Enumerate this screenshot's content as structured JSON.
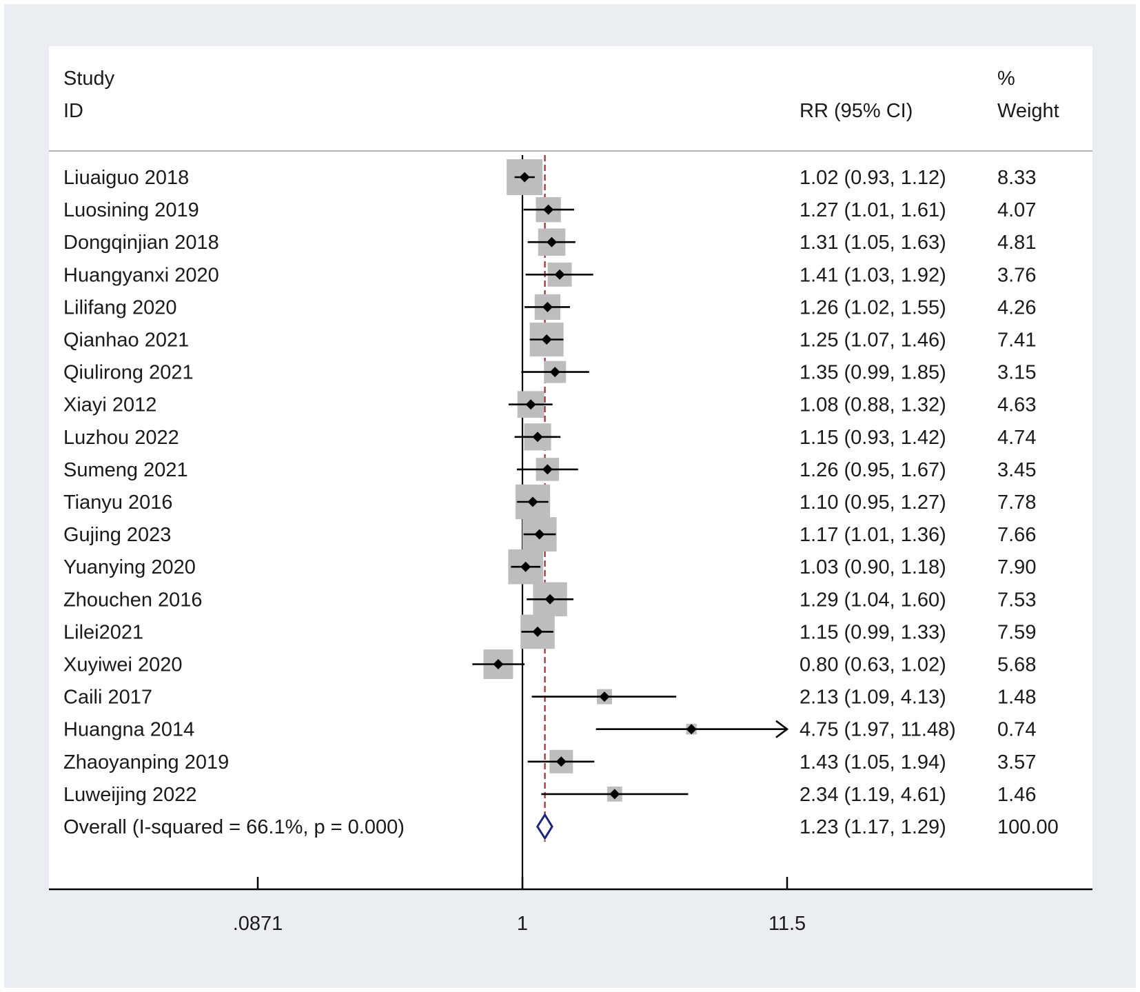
{
  "chart_data": {
    "type": "forest",
    "x_scale": "log",
    "headers": {
      "study_line1": "Study",
      "study_line2": "ID",
      "effect": "RR (95% CI)",
      "weight_line1": "%",
      "weight_line2": "Weight"
    },
    "studies": [
      {
        "label": "Liuaiguo 2018",
        "rr": 1.02,
        "lower": 0.93,
        "upper": 1.12,
        "weight": 8.33,
        "rr_text": "1.02 (0.93, 1.12)",
        "weight_text": "8.33"
      },
      {
        "label": "Luosining 2019",
        "rr": 1.27,
        "lower": 1.01,
        "upper": 1.61,
        "weight": 4.07,
        "rr_text": "1.27 (1.01, 1.61)",
        "weight_text": "4.07"
      },
      {
        "label": "Dongqinjian 2018",
        "rr": 1.31,
        "lower": 1.05,
        "upper": 1.63,
        "weight": 4.81,
        "rr_text": "1.31 (1.05, 1.63)",
        "weight_text": "4.81"
      },
      {
        "label": "Huangyanxi 2020",
        "rr": 1.41,
        "lower": 1.03,
        "upper": 1.92,
        "weight": 3.76,
        "rr_text": "1.41 (1.03, 1.92)",
        "weight_text": "3.76"
      },
      {
        "label": "Lilifang 2020",
        "rr": 1.26,
        "lower": 1.02,
        "upper": 1.55,
        "weight": 4.26,
        "rr_text": "1.26 (1.02, 1.55)",
        "weight_text": "4.26"
      },
      {
        "label": "Qianhao 2021",
        "rr": 1.25,
        "lower": 1.07,
        "upper": 1.46,
        "weight": 7.41,
        "rr_text": "1.25 (1.07, 1.46)",
        "weight_text": "7.41"
      },
      {
        "label": "Qiulirong 2021",
        "rr": 1.35,
        "lower": 0.99,
        "upper": 1.85,
        "weight": 3.15,
        "rr_text": "1.35 (0.99, 1.85)",
        "weight_text": "3.15"
      },
      {
        "label": "Xiayi 2012",
        "rr": 1.08,
        "lower": 0.88,
        "upper": 1.32,
        "weight": 4.63,
        "rr_text": "1.08 (0.88, 1.32)",
        "weight_text": "4.63"
      },
      {
        "label": "Luzhou 2022",
        "rr": 1.15,
        "lower": 0.93,
        "upper": 1.42,
        "weight": 4.74,
        "rr_text": "1.15 (0.93, 1.42)",
        "weight_text": "4.74"
      },
      {
        "label": "Sumeng 2021",
        "rr": 1.26,
        "lower": 0.95,
        "upper": 1.67,
        "weight": 3.45,
        "rr_text": "1.26 (0.95, 1.67)",
        "weight_text": "3.45"
      },
      {
        "label": "Tianyu 2016",
        "rr": 1.1,
        "lower": 0.95,
        "upper": 1.27,
        "weight": 7.78,
        "rr_text": "1.10 (0.95, 1.27)",
        "weight_text": "7.78"
      },
      {
        "label": "Gujing 2023",
        "rr": 1.17,
        "lower": 1.01,
        "upper": 1.36,
        "weight": 7.66,
        "rr_text": "1.17 (1.01, 1.36)",
        "weight_text": "7.66"
      },
      {
        "label": "Yuanying 2020",
        "rr": 1.03,
        "lower": 0.9,
        "upper": 1.18,
        "weight": 7.9,
        "rr_text": "1.03 (0.90, 1.18)",
        "weight_text": "7.90"
      },
      {
        "label": "Zhouchen 2016",
        "rr": 1.29,
        "lower": 1.04,
        "upper": 1.6,
        "weight": 7.53,
        "rr_text": "1.29 (1.04, 1.60)",
        "weight_text": "7.53"
      },
      {
        "label": "Lilei2021",
        "rr": 1.15,
        "lower": 0.99,
        "upper": 1.33,
        "weight": 7.59,
        "rr_text": "1.15 (0.99, 1.33)",
        "weight_text": "7.59"
      },
      {
        "label": "Xuyiwei 2020",
        "rr": 0.8,
        "lower": 0.63,
        "upper": 1.02,
        "weight": 5.68,
        "rr_text": "0.80 (0.63, 1.02)",
        "weight_text": "5.68"
      },
      {
        "label": "Caili 2017",
        "rr": 2.13,
        "lower": 1.09,
        "upper": 4.13,
        "weight": 1.48,
        "rr_text": "2.13 (1.09, 4.13)",
        "weight_text": "1.48"
      },
      {
        "label": "Huangna 2014",
        "rr": 4.75,
        "lower": 1.97,
        "upper": 11.48,
        "weight": 0.74,
        "rr_text": "4.75 (1.97, 11.48)",
        "weight_text": "0.74"
      },
      {
        "label": "Zhaoyanping 2019",
        "rr": 1.43,
        "lower": 1.05,
        "upper": 1.94,
        "weight": 3.57,
        "rr_text": "1.43 (1.05, 1.94)",
        "weight_text": "3.57"
      },
      {
        "label": "Luweijing 2022",
        "rr": 2.34,
        "lower": 1.19,
        "upper": 4.61,
        "weight": 1.46,
        "rr_text": "2.34 (1.19, 4.61)",
        "weight_text": "1.46"
      }
    ],
    "overall": {
      "label": "Overall  (I-squared = 66.1%, p = 0.000)",
      "rr": 1.23,
      "lower": 1.17,
      "upper": 1.29,
      "weight": 100.0,
      "rr_text": "1.23 (1.17, 1.29)",
      "weight_text": "100.00"
    },
    "null_line": 1,
    "pooled_line": 1.23,
    "xlim": [
      0.0871,
      11.48
    ],
    "ticks": [
      {
        "value": 0.0871,
        "label": ".0871"
      },
      {
        "value": 1,
        "label": "1"
      },
      {
        "value": 11.48,
        "label": "11.5"
      }
    ],
    "colors": {
      "marker_box": "#bdbdbd",
      "point": "#000000",
      "ci_line": "#000000",
      "pooled_line": "#a52a2a",
      "overall_diamond": "#1a237e",
      "frame_bg": "#eaeef3",
      "panel_bg": "#ffffff"
    }
  }
}
